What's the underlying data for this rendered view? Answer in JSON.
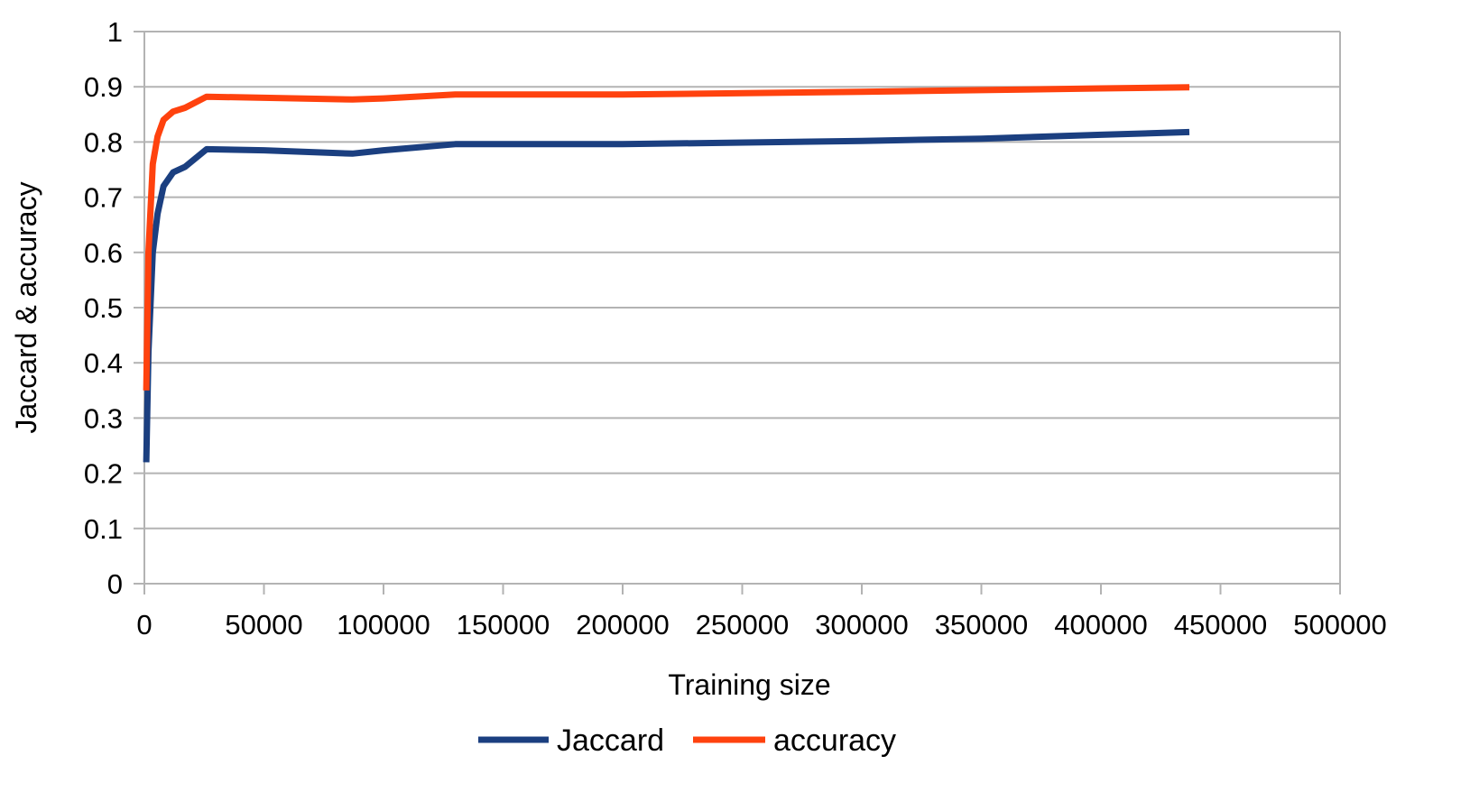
{
  "chart_data": {
    "type": "line",
    "title": "",
    "xlabel": "Training size",
    "ylabel": "Jaccard & accuracy",
    "xlim": [
      0,
      500000
    ],
    "ylim": [
      0,
      1
    ],
    "x_ticks": [
      0,
      50000,
      100000,
      150000,
      200000,
      250000,
      300000,
      350000,
      400000,
      450000,
      500000
    ],
    "x_tick_labels": [
      "0",
      "50000",
      "100000",
      "150000",
      "200000",
      "250000",
      "300000",
      "350000",
      "400000",
      "450000",
      "500000"
    ],
    "y_ticks": [
      0,
      0.1,
      0.2,
      0.3,
      0.4,
      0.5,
      0.6,
      0.7,
      0.8,
      0.9,
      1
    ],
    "y_tick_labels": [
      "0",
      "0.1",
      "0.2",
      "0.3",
      "0.4",
      "0.5",
      "0.6",
      "0.7",
      "0.8",
      "0.9",
      "1"
    ],
    "grid": true,
    "legend_position": "bottom",
    "series": [
      {
        "name": "Jaccard",
        "color": "#1b3f80",
        "x": [
          800,
          1700,
          3500,
          5500,
          8000,
          12000,
          17000,
          26000,
          50000,
          87000,
          100000,
          130000,
          200000,
          300000,
          350000,
          400000,
          437000
        ],
        "y": [
          0.22,
          0.42,
          0.6,
          0.67,
          0.72,
          0.745,
          0.755,
          0.787,
          0.785,
          0.779,
          0.785,
          0.796,
          0.796,
          0.802,
          0.806,
          0.813,
          0.818
        ]
      },
      {
        "name": "accuracy",
        "color": "#ff420e",
        "x": [
          800,
          1700,
          3500,
          5500,
          8000,
          12000,
          17000,
          26000,
          50000,
          87000,
          100000,
          130000,
          200000,
          300000,
          350000,
          400000,
          437000
        ],
        "y": [
          0.35,
          0.6,
          0.76,
          0.81,
          0.84,
          0.855,
          0.862,
          0.882,
          0.88,
          0.877,
          0.879,
          0.886,
          0.886,
          0.891,
          0.894,
          0.897,
          0.899
        ]
      }
    ]
  }
}
